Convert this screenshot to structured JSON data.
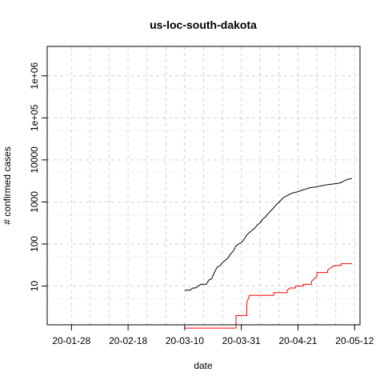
{
  "chart_data": {
    "type": "line",
    "title": "us-loc-south-dakota",
    "xlabel": "date",
    "ylabel": "# confirmed cases",
    "x_scale": "date",
    "y_scale": "log",
    "xlim": [
      "2020-01-19",
      "2020-05-14"
    ],
    "ylim": [
      1.2,
      5000000
    ],
    "x_ticks": [
      {
        "date": "2020-01-28",
        "label": "20-01-28"
      },
      {
        "date": "2020-02-18",
        "label": "20-02-18"
      },
      {
        "date": "2020-03-10",
        "label": "20-03-10"
      },
      {
        "date": "2020-03-31",
        "label": "20-03-31"
      },
      {
        "date": "2020-04-21",
        "label": "20-04-21"
      },
      {
        "date": "2020-05-12",
        "label": "20-05-12"
      }
    ],
    "x_grid_dates": [
      "2020-01-28",
      "2020-02-04",
      "2020-02-11",
      "2020-02-18",
      "2020-02-25",
      "2020-03-03",
      "2020-03-10",
      "2020-03-17",
      "2020-03-24",
      "2020-03-31",
      "2020-04-07",
      "2020-04-14",
      "2020-04-21",
      "2020-04-28",
      "2020-05-05",
      "2020-05-12"
    ],
    "y_ticks": [
      {
        "value": 10,
        "label": "10"
      },
      {
        "value": 100,
        "label": "100"
      },
      {
        "value": 1000,
        "label": "1000"
      },
      {
        "value": 10000,
        "label": "10000"
      },
      {
        "value": 100000,
        "label": "1e+05"
      },
      {
        "value": 1000000,
        "label": "1e+06"
      }
    ],
    "y_minor_grid": [
      5,
      50,
      500,
      5000,
      50000,
      500000
    ],
    "grid": true,
    "series": [
      {
        "color": "#000000",
        "step": false,
        "points": [
          [
            "2020-03-10",
            8
          ],
          [
            "2020-03-12",
            8
          ],
          [
            "2020-03-13",
            9
          ],
          [
            "2020-03-14",
            9
          ],
          [
            "2020-03-15",
            10
          ],
          [
            "2020-03-16",
            11
          ],
          [
            "2020-03-18",
            11
          ],
          [
            "2020-03-19",
            14
          ],
          [
            "2020-03-20",
            15
          ],
          [
            "2020-03-21",
            21
          ],
          [
            "2020-03-22",
            28
          ],
          [
            "2020-03-23",
            30
          ],
          [
            "2020-03-24",
            36
          ],
          [
            "2020-03-25",
            41
          ],
          [
            "2020-03-26",
            46
          ],
          [
            "2020-03-27",
            58
          ],
          [
            "2020-03-28",
            68
          ],
          [
            "2020-03-29",
            90
          ],
          [
            "2020-03-30",
            101
          ],
          [
            "2020-03-31",
            108
          ],
          [
            "2020-04-01",
            129
          ],
          [
            "2020-04-02",
            165
          ],
          [
            "2020-04-03",
            187
          ],
          [
            "2020-04-04",
            212
          ],
          [
            "2020-04-05",
            240
          ],
          [
            "2020-04-06",
            288
          ],
          [
            "2020-04-07",
            320
          ],
          [
            "2020-04-08",
            393
          ],
          [
            "2020-04-09",
            447
          ],
          [
            "2020-04-10",
            536
          ],
          [
            "2020-04-11",
            626
          ],
          [
            "2020-04-12",
            730
          ],
          [
            "2020-04-13",
            868
          ],
          [
            "2020-04-14",
            988
          ],
          [
            "2020-04-15",
            1168
          ],
          [
            "2020-04-16",
            1311
          ],
          [
            "2020-04-17",
            1411
          ],
          [
            "2020-04-18",
            1542
          ],
          [
            "2020-04-19",
            1635
          ],
          [
            "2020-04-20",
            1685
          ],
          [
            "2020-04-21",
            1755
          ],
          [
            "2020-04-22",
            1858
          ],
          [
            "2020-04-23",
            1956
          ],
          [
            "2020-04-24",
            2040
          ],
          [
            "2020-04-25",
            2147
          ],
          [
            "2020-04-26",
            2212
          ],
          [
            "2020-04-27",
            2245
          ],
          [
            "2020-04-28",
            2313
          ],
          [
            "2020-04-29",
            2373
          ],
          [
            "2020-04-30",
            2449
          ],
          [
            "2020-05-01",
            2525
          ],
          [
            "2020-05-02",
            2588
          ],
          [
            "2020-05-03",
            2631
          ],
          [
            "2020-05-04",
            2668
          ],
          [
            "2020-05-05",
            2721
          ],
          [
            "2020-05-06",
            2779
          ],
          [
            "2020-05-07",
            2905
          ],
          [
            "2020-05-08",
            3144
          ],
          [
            "2020-05-09",
            3393
          ],
          [
            "2020-05-10",
            3517
          ],
          [
            "2020-05-11",
            3614
          ]
        ]
      },
      {
        "color": "#ff0000",
        "step": true,
        "points": [
          [
            "2020-03-10",
            1
          ],
          [
            "2020-03-29",
            1
          ],
          [
            "2020-03-29",
            2
          ],
          [
            "2020-04-02",
            2
          ],
          [
            "2020-04-02",
            4
          ],
          [
            "2020-04-03",
            6
          ],
          [
            "2020-04-12",
            6
          ],
          [
            "2020-04-12",
            7
          ],
          [
            "2020-04-17",
            7
          ],
          [
            "2020-04-17",
            8
          ],
          [
            "2020-04-18",
            9
          ],
          [
            "2020-04-20",
            9
          ],
          [
            "2020-04-20",
            10
          ],
          [
            "2020-04-23",
            10
          ],
          [
            "2020-04-23",
            11
          ],
          [
            "2020-04-26",
            11
          ],
          [
            "2020-04-26",
            13
          ],
          [
            "2020-04-28",
            17
          ],
          [
            "2020-04-28",
            21
          ],
          [
            "2020-05-02",
            21
          ],
          [
            "2020-05-02",
            24
          ],
          [
            "2020-05-04",
            30
          ],
          [
            "2020-05-06",
            31
          ],
          [
            "2020-05-07",
            31
          ],
          [
            "2020-05-07",
            34
          ],
          [
            "2020-05-11",
            34
          ]
        ]
      }
    ]
  }
}
